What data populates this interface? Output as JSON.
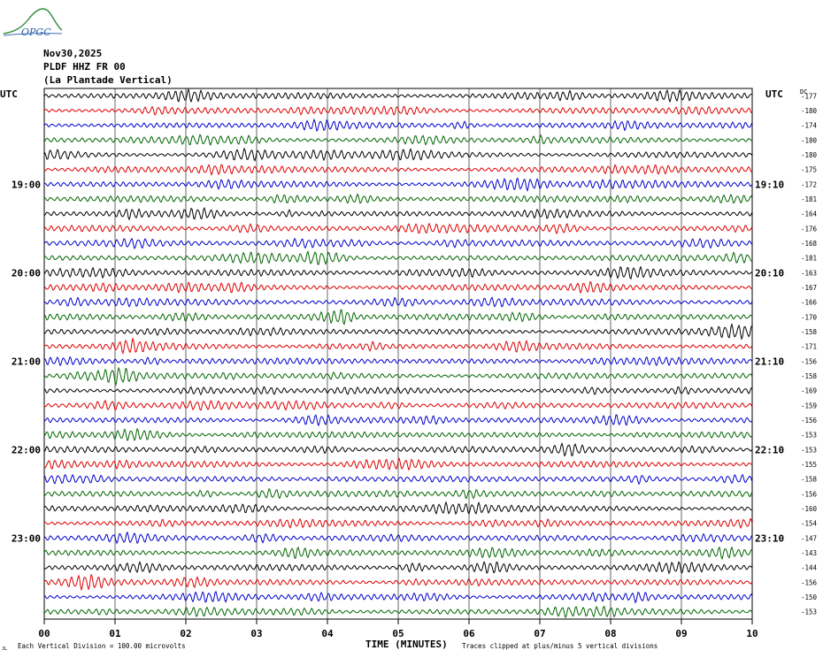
{
  "logo": {
    "text": "OPGC"
  },
  "header": {
    "date": "Nov30,2025",
    "station": "PLDF HHZ FR 00",
    "location": "(La Plantade Vertical)"
  },
  "left_axis_label": "UTC",
  "right_axis_label": "UTC",
  "dc_label": "DC",
  "footer": {
    "scale_note": "Each Vertical Division =  100.00 microvolts",
    "clip_note": "Traces clipped at plus/minus 5 vertical divisions",
    "mark": "JL"
  },
  "colors": {
    "trace_cycle": [
      "#000000",
      "#dd0000",
      "#0000cc",
      "#006600"
    ],
    "grid": "#000000"
  },
  "chart_data": {
    "type": "line",
    "title": "",
    "xlabel": "TIME (MINUTES)",
    "ylabel": "",
    "xlim": [
      0,
      10
    ],
    "x_ticks": [
      "00",
      "01",
      "02",
      "03",
      "04",
      "05",
      "06",
      "07",
      "08",
      "09",
      "10"
    ],
    "left_time_labels": [
      {
        "row": 6,
        "label": "19:00"
      },
      {
        "row": 12,
        "label": "20:00"
      },
      {
        "row": 18,
        "label": "21:00"
      },
      {
        "row": 24,
        "label": "22:00"
      },
      {
        "row": 30,
        "label": "23:00"
      }
    ],
    "right_time_labels": [
      {
        "row": 6,
        "label": "19:10"
      },
      {
        "row": 12,
        "label": "20:10"
      },
      {
        "row": 18,
        "label": "21:10"
      },
      {
        "row": 24,
        "label": "22:10"
      },
      {
        "row": 30,
        "label": "23:10"
      }
    ],
    "dc_offsets": [
      "-177",
      "-180",
      "-174",
      "-180",
      "-180",
      "-175",
      "-172",
      "-181",
      "-164",
      "-176",
      "-168",
      "-181",
      "-163",
      "-167",
      "-166",
      "-170",
      "-158",
      "-171",
      "-156",
      "-158",
      "-169",
      "-159",
      "-156",
      "-153",
      "-153",
      "-155",
      "-158",
      "-156",
      "-160",
      "-154",
      "-147",
      "-143",
      "-144",
      "-156",
      "-150",
      "-153"
    ],
    "trace_count": 36,
    "grid": true
  }
}
